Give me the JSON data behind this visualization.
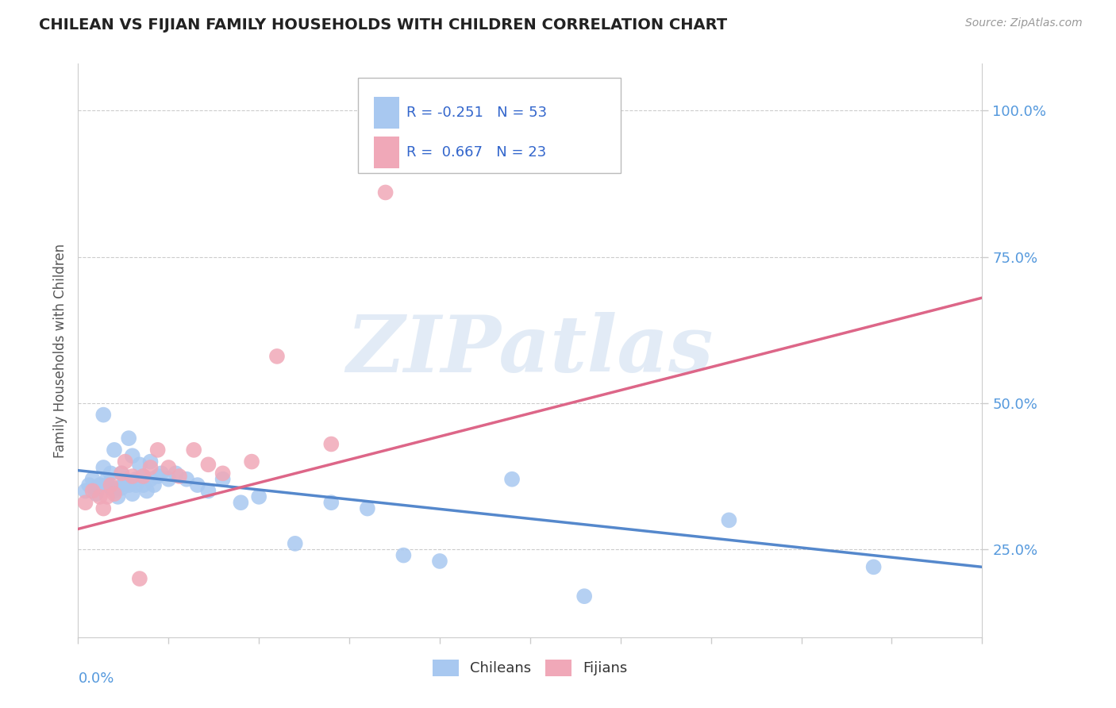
{
  "title": "CHILEAN VS FIJIAN FAMILY HOUSEHOLDS WITH CHILDREN CORRELATION CHART",
  "source": "Source: ZipAtlas.com",
  "ylabel": "Family Households with Children",
  "yticks": [
    0.25,
    0.5,
    0.75,
    1.0
  ],
  "ytick_labels": [
    "25.0%",
    "50.0%",
    "75.0%",
    "100.0%"
  ],
  "xlim": [
    0.0,
    0.25
  ],
  "ylim": [
    0.1,
    1.08
  ],
  "chilean_color": "#a8c8f0",
  "fijian_color": "#f0a8b8",
  "chilean_line_color": "#5588cc",
  "fijian_line_color": "#dd6688",
  "R_chilean": -0.251,
  "N_chilean": 53,
  "R_fijian": 0.667,
  "N_fijian": 23,
  "watermark": "ZIPatlas",
  "background_color": "#ffffff",
  "chileans_scatter_x": [
    0.002,
    0.003,
    0.004,
    0.005,
    0.005,
    0.006,
    0.007,
    0.007,
    0.008,
    0.008,
    0.009,
    0.009,
    0.01,
    0.01,
    0.011,
    0.011,
    0.012,
    0.012,
    0.013,
    0.013,
    0.014,
    0.014,
    0.015,
    0.015,
    0.016,
    0.016,
    0.017,
    0.017,
    0.018,
    0.018,
    0.019,
    0.02,
    0.02,
    0.021,
    0.022,
    0.023,
    0.025,
    0.027,
    0.03,
    0.033,
    0.036,
    0.04,
    0.045,
    0.05,
    0.06,
    0.07,
    0.08,
    0.09,
    0.1,
    0.12,
    0.14,
    0.18,
    0.22
  ],
  "chileans_scatter_y": [
    0.35,
    0.36,
    0.37,
    0.355,
    0.345,
    0.36,
    0.48,
    0.39,
    0.37,
    0.36,
    0.355,
    0.38,
    0.35,
    0.42,
    0.355,
    0.34,
    0.38,
    0.355,
    0.37,
    0.365,
    0.36,
    0.44,
    0.345,
    0.41,
    0.36,
    0.37,
    0.37,
    0.395,
    0.36,
    0.375,
    0.35,
    0.37,
    0.4,
    0.36,
    0.375,
    0.38,
    0.37,
    0.38,
    0.37,
    0.36,
    0.35,
    0.37,
    0.33,
    0.34,
    0.26,
    0.33,
    0.32,
    0.24,
    0.23,
    0.37,
    0.17,
    0.3,
    0.22
  ],
  "fijians_scatter_x": [
    0.002,
    0.004,
    0.006,
    0.007,
    0.008,
    0.009,
    0.01,
    0.012,
    0.013,
    0.015,
    0.017,
    0.018,
    0.02,
    0.022,
    0.025,
    0.028,
    0.032,
    0.036,
    0.04,
    0.048,
    0.055,
    0.07,
    0.085
  ],
  "fijians_scatter_y": [
    0.33,
    0.35,
    0.34,
    0.32,
    0.34,
    0.36,
    0.345,
    0.38,
    0.4,
    0.375,
    0.2,
    0.375,
    0.39,
    0.42,
    0.39,
    0.375,
    0.42,
    0.395,
    0.38,
    0.4,
    0.58,
    0.43,
    0.86
  ],
  "chilean_trend_x": [
    0.0,
    0.25
  ],
  "chilean_trend_y": [
    0.385,
    0.22
  ],
  "fijian_trend_x": [
    0.0,
    0.25
  ],
  "fijian_trend_y": [
    0.285,
    0.68
  ]
}
